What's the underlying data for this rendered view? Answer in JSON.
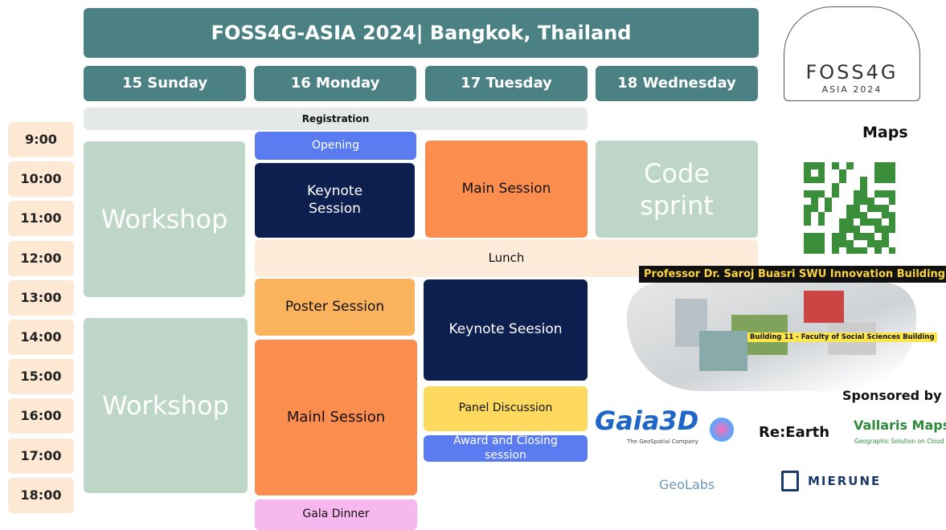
{
  "header": {
    "title": "FOSS4G-ASIA 2024| Bangkok, Thailand"
  },
  "days": [
    "15 Sunday",
    "16 Monday",
    "17 Tuesday",
    "18 Wednesday"
  ],
  "times": [
    "9:00",
    "10:00",
    "11:00",
    "12:00",
    "13:00",
    "14:00",
    "15:00",
    "16:00",
    "17:00",
    "18:00"
  ],
  "sessions": [
    {
      "label": "Registration"
    },
    {
      "label": "Workshop"
    },
    {
      "label": "Workshop"
    },
    {
      "label": "Opening"
    },
    {
      "label": "Keynote Session"
    },
    {
      "label": "Main Session"
    },
    {
      "label": "Code sprint"
    },
    {
      "label": "Lunch"
    },
    {
      "label": "Poster Session"
    },
    {
      "label": "Mainl Session"
    },
    {
      "label": "Gala Dinner"
    },
    {
      "label": "Keynote Seesion"
    },
    {
      "label": "Panel Discussion"
    },
    {
      "label": "Award and Closing session"
    }
  ],
  "logo": {
    "name": "FOSS4G",
    "subtitle": "ASIA 2024"
  },
  "maps": {
    "title": "Maps",
    "venue": "Professor Dr. Saroj Buasri SWU Innovation Building",
    "building": "Building 11 - Faculty of Social Sciences Building"
  },
  "sponsors": {
    "title": "Sponsored by",
    "items": [
      {
        "name": "Gaia3D",
        "tagline": "The GeoSpatial Company"
      },
      {
        "name": "Re:Earth"
      },
      {
        "name": "Vallaris Maps",
        "tagline": "Geographic Solution on Cloud"
      },
      {
        "name": "GeoLabs"
      },
      {
        "name": "MIERUNE"
      }
    ]
  }
}
